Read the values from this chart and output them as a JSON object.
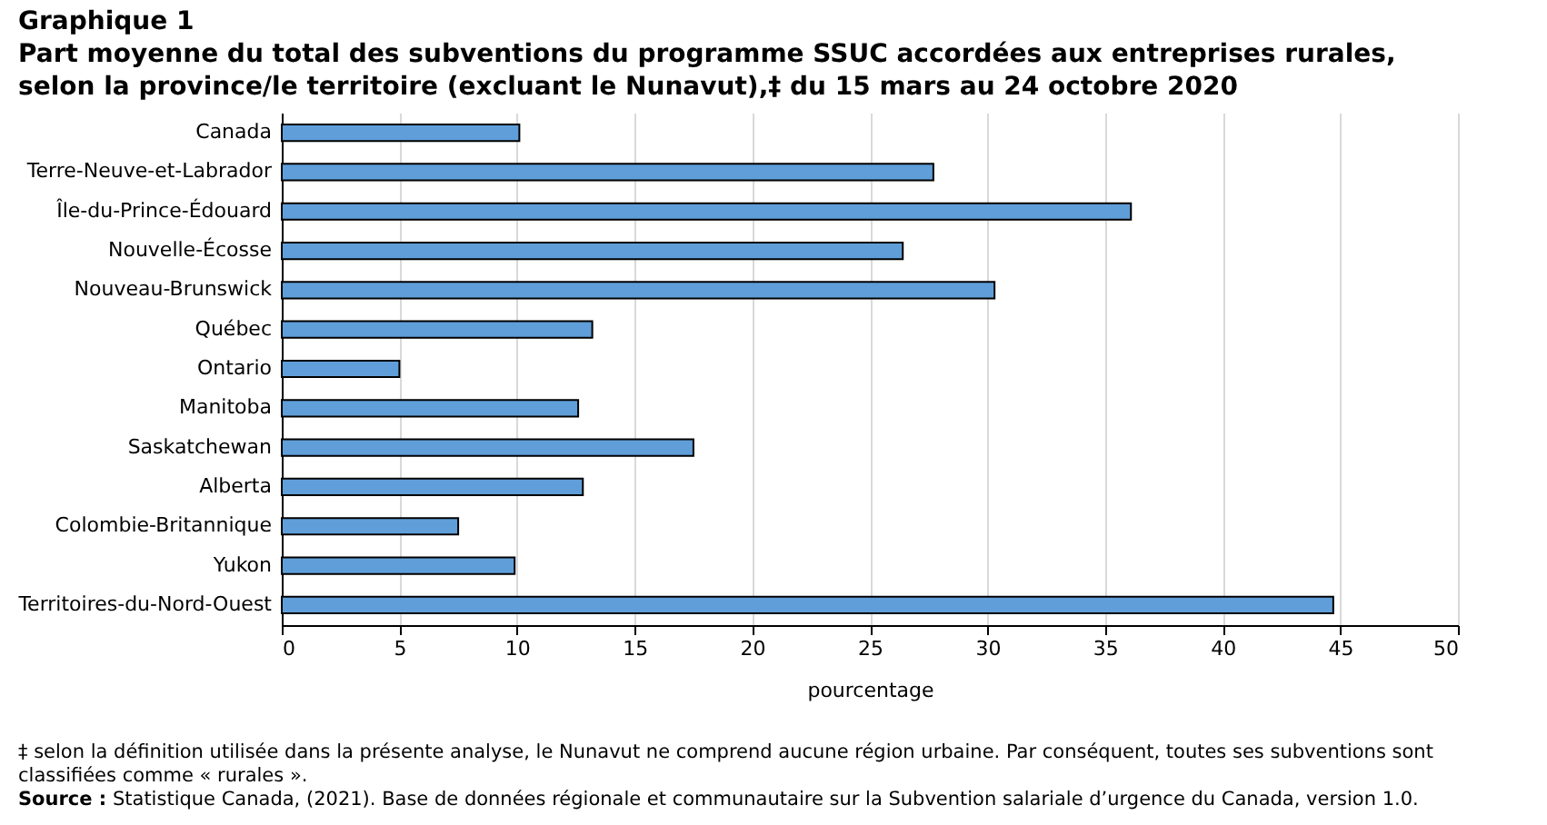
{
  "chart_data": {
    "type": "bar",
    "orientation": "horizontal",
    "title": "Graphique 1",
    "subtitle": "Part moyenne du total des subventions du programme SSUC accordées aux entreprises rurales, selon la province/le territoire (excluant le Nunavut),‡ du 15 mars au 24 octobre 2020",
    "categories": [
      "Canada",
      "Terre-Neuve-et-Labrador",
      "Île-du-Prince-Édouard",
      "Nouvelle-Écosse",
      "Nouveau-Brunswick",
      "Québec",
      "Ontario",
      "Manitoba",
      "Saskatchewan",
      "Alberta",
      "Colombie-Britannique",
      "Yukon",
      "Territoires-du-Nord-Ouest"
    ],
    "values": [
      10.1,
      27.7,
      36.1,
      26.4,
      30.3,
      13.2,
      5.0,
      12.6,
      17.5,
      12.8,
      7.5,
      9.9,
      44.7
    ],
    "color": "#5f9ed8",
    "xlabel": "pourcentage",
    "xlim": [
      0,
      50
    ],
    "xticks": [
      0,
      5,
      10,
      15,
      20,
      25,
      30,
      35,
      40,
      45,
      50
    ],
    "grid": "x",
    "annotations": [
      "‡ selon la définition utilisée dans la présente analyse, le Nunavut ne comprend aucune région urbaine. Par conséquent, toutes ses subventions sont classifiées comme « rurales ».",
      "Source : Statistique Canada, (2021). Base de données régionale et communautaire sur la Subvention salariale d’urgence du Canada, version 1.0."
    ]
  }
}
